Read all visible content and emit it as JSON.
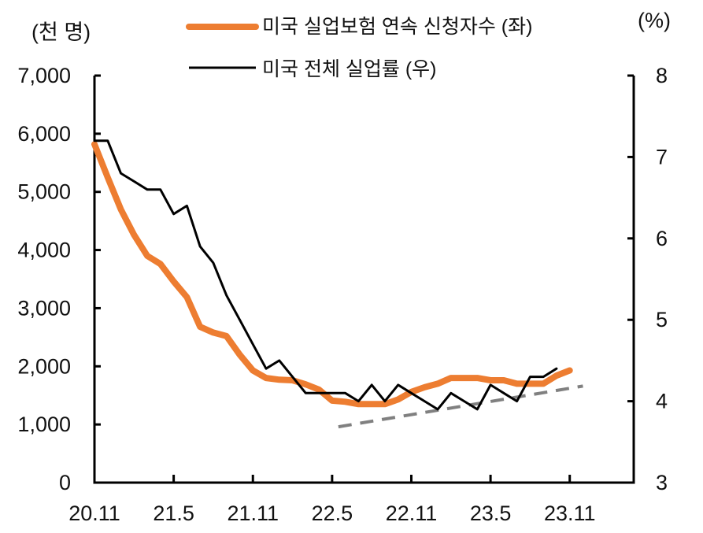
{
  "chart_data": {
    "type": "line",
    "x_start": "20.11",
    "x_frequency": "monthly",
    "x_tick_labels": [
      "20.11",
      "21.5",
      "21.11",
      "22.5",
      "22.11",
      "23.5",
      "23.11"
    ],
    "left_axis": {
      "label": "(천 명)",
      "ylim": [
        0,
        7000
      ],
      "ticks": [
        "0",
        "1,000",
        "2,000",
        "3,000",
        "4,000",
        "5,000",
        "6,000",
        "7,000"
      ]
    },
    "right_axis": {
      "label": "(%)",
      "ylim": [
        3,
        8
      ],
      "ticks": [
        "3",
        "4",
        "5",
        "6",
        "7",
        "8"
      ]
    },
    "grid": false,
    "legend_position": "top",
    "series": [
      {
        "name": "미국 실업보험 연속 신청자수 (좌)",
        "axis": "left",
        "color": "#ED7D31",
        "values": [
          5820,
          5250,
          4700,
          4260,
          3900,
          3760,
          3460,
          3190,
          2680,
          2580,
          2520,
          2200,
          1930,
          1800,
          1770,
          1760,
          1690,
          1600,
          1410,
          1390,
          1350,
          1350,
          1350,
          1430,
          1560,
          1640,
          1700,
          1800,
          1800,
          1800,
          1760,
          1760,
          1700,
          1700,
          1700,
          1840,
          1930
        ]
      },
      {
        "name": "미국 전체 실업률 (우)",
        "axis": "right",
        "color": "#000000",
        "values": [
          7.2,
          7.2,
          6.8,
          6.7,
          6.6,
          6.6,
          6.3,
          6.4,
          5.9,
          5.7,
          5.3,
          5.0,
          4.7,
          4.4,
          4.5,
          4.3,
          4.1,
          4.1,
          4.1,
          4.1,
          4.0,
          4.2,
          4.0,
          4.2,
          4.1,
          4.0,
          3.9,
          4.1,
          4.0,
          3.9,
          4.2,
          4.1,
          4.0,
          4.3,
          4.3,
          4.4
        ]
      }
    ],
    "trend_line": {
      "axis": "left",
      "style": "dashed",
      "color": "#808080",
      "start": {
        "x": "22.5",
        "y": 960
      },
      "end": {
        "x": "23.12",
        "y": 1660
      }
    }
  }
}
